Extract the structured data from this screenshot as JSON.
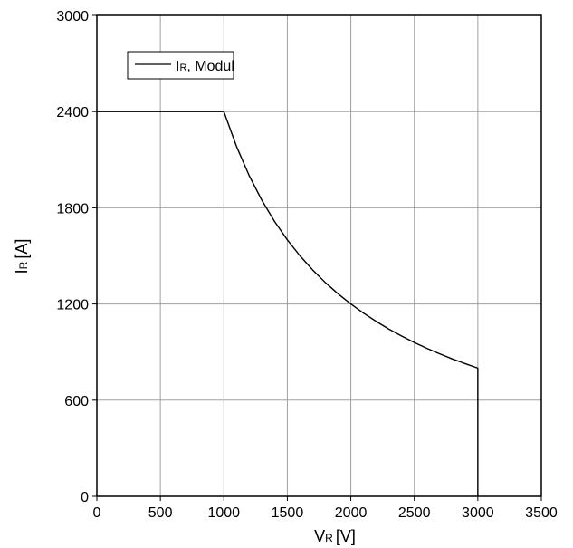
{
  "chart_data": {
    "type": "line",
    "title": "",
    "xlabel": {
      "main": "V",
      "sub": "R",
      "unit": "[V]"
    },
    "ylabel": {
      "main": "I",
      "sub": "R",
      "unit": "[A]"
    },
    "xlim": [
      0,
      3500
    ],
    "ylim": [
      0,
      3000
    ],
    "xticks": [
      0,
      500,
      1000,
      1500,
      2000,
      2500,
      3000,
      3500
    ],
    "yticks": [
      0,
      600,
      1200,
      1800,
      2400,
      3000
    ],
    "grid": true,
    "legend_position": "top-left",
    "series": [
      {
        "name": {
          "main": "I",
          "sub": "R",
          "suffix": ", Modul"
        },
        "color": "#000000",
        "x": [
          0,
          1000,
          1100,
          1200,
          1300,
          1400,
          1500,
          1600,
          1700,
          1800,
          1900,
          2000,
          2100,
          2200,
          2300,
          2400,
          2500,
          2600,
          2700,
          2800,
          2900,
          3000,
          3000
        ],
        "y": [
          2400,
          2400,
          2182,
          2000,
          1846,
          1714,
          1600,
          1500,
          1412,
          1333,
          1263,
          1200,
          1143,
          1091,
          1043,
          1000,
          960,
          923,
          889,
          857,
          828,
          800,
          0
        ]
      }
    ]
  }
}
